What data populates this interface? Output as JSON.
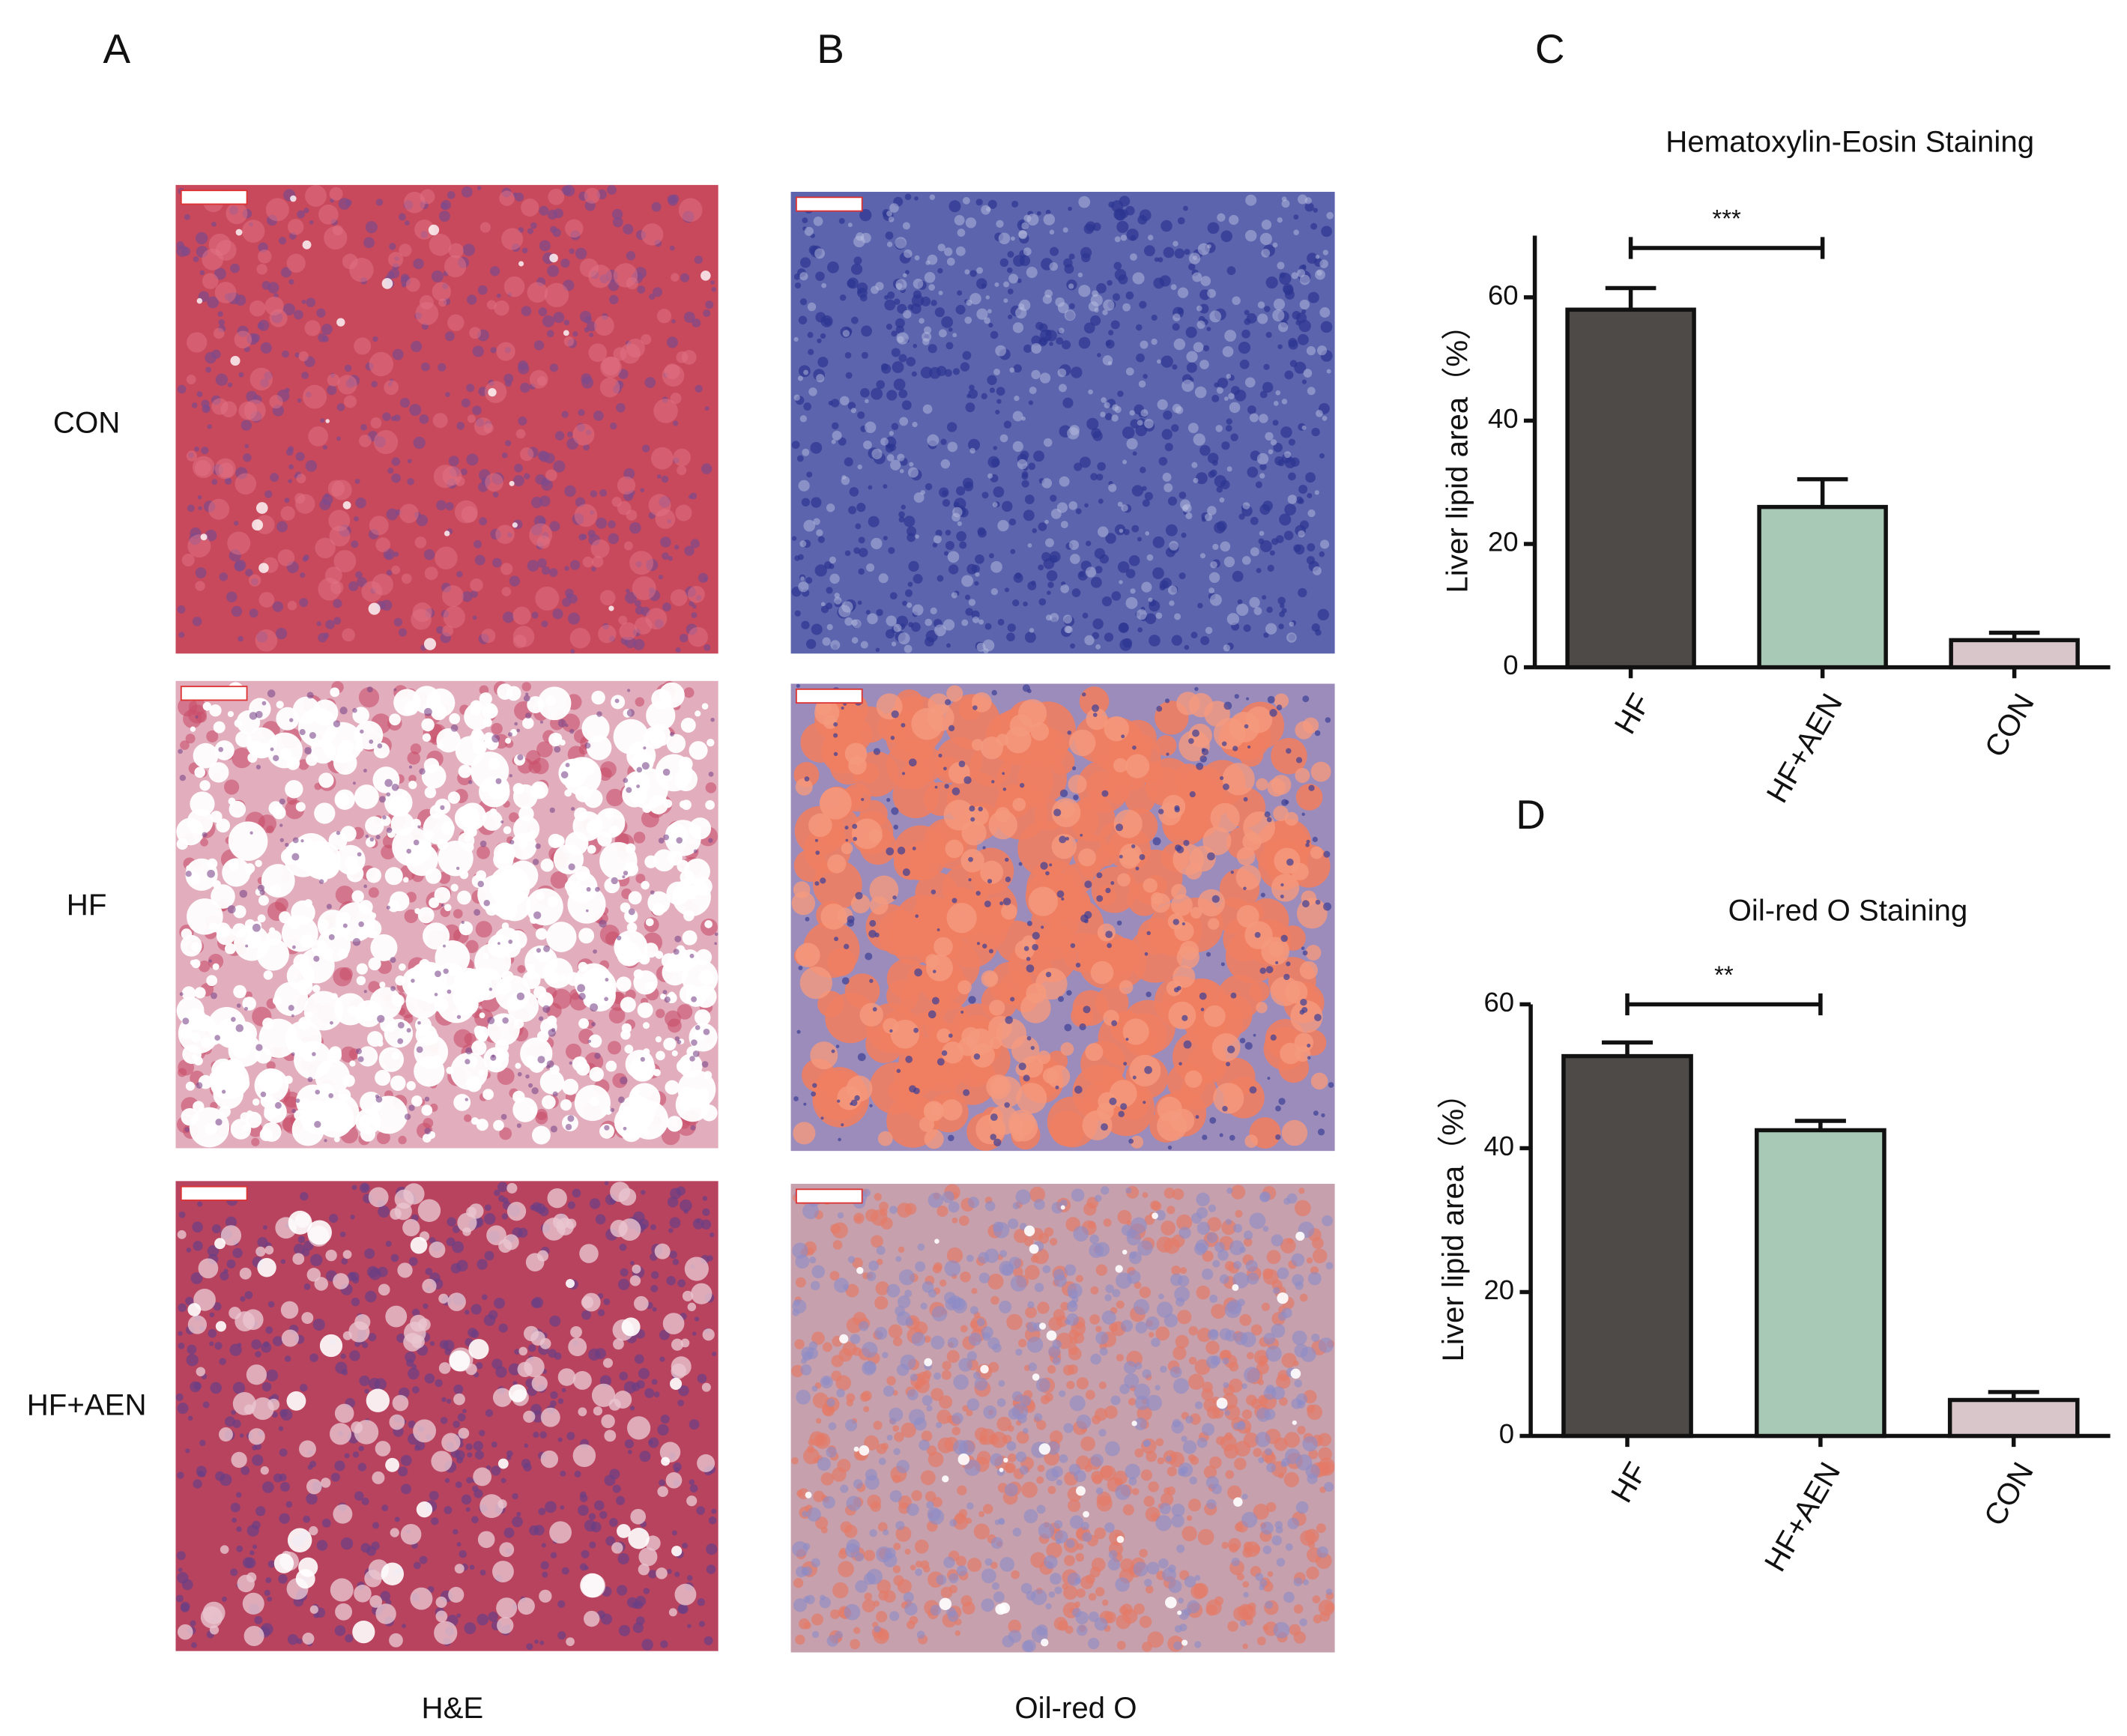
{
  "panel_labels": [
    "A",
    "B",
    "C",
    "D"
  ],
  "row_labels": [
    "CON",
    "HF",
    "HF+AEN"
  ],
  "column_labels": [
    "H&E",
    "Oil-red O"
  ],
  "chart_data": [
    {
      "type": "bar",
      "title": "Hematoxylin-Eosin Staining",
      "y_label": "Liver lipid area（%）",
      "categories": [
        "HF",
        "HF+AEN",
        "CON"
      ],
      "values": [
        58,
        26,
        4.4
      ],
      "errors": [
        3.5,
        4.5,
        1.2
      ],
      "colors": [
        "#4d4a47",
        "#a9c9b7",
        "#d8c6cb"
      ],
      "ylim": [
        0,
        70
      ],
      "yticks": [
        0,
        20,
        40,
        60
      ],
      "annotations": [
        {
          "text": "***",
          "between": [
            0,
            1
          ],
          "y": 68
        }
      ]
    },
    {
      "type": "bar",
      "title": "Oil-red O Staining",
      "y_label": "Liver lipid area（%）",
      "categories": [
        "HF",
        "HF+AEN",
        "CON"
      ],
      "values": [
        52.8,
        42.5,
        5
      ],
      "errors": [
        1.9,
        1.3,
        1.1
      ],
      "colors": [
        "#4d4a47",
        "#a9c9b7",
        "#d8c6cb"
      ],
      "ylim": [
        0,
        60
      ],
      "yticks": [
        0,
        20,
        40,
        60
      ],
      "annotations": [
        {
          "text": "**",
          "between": [
            0,
            1
          ],
          "y": 60
        }
      ]
    }
  ]
}
